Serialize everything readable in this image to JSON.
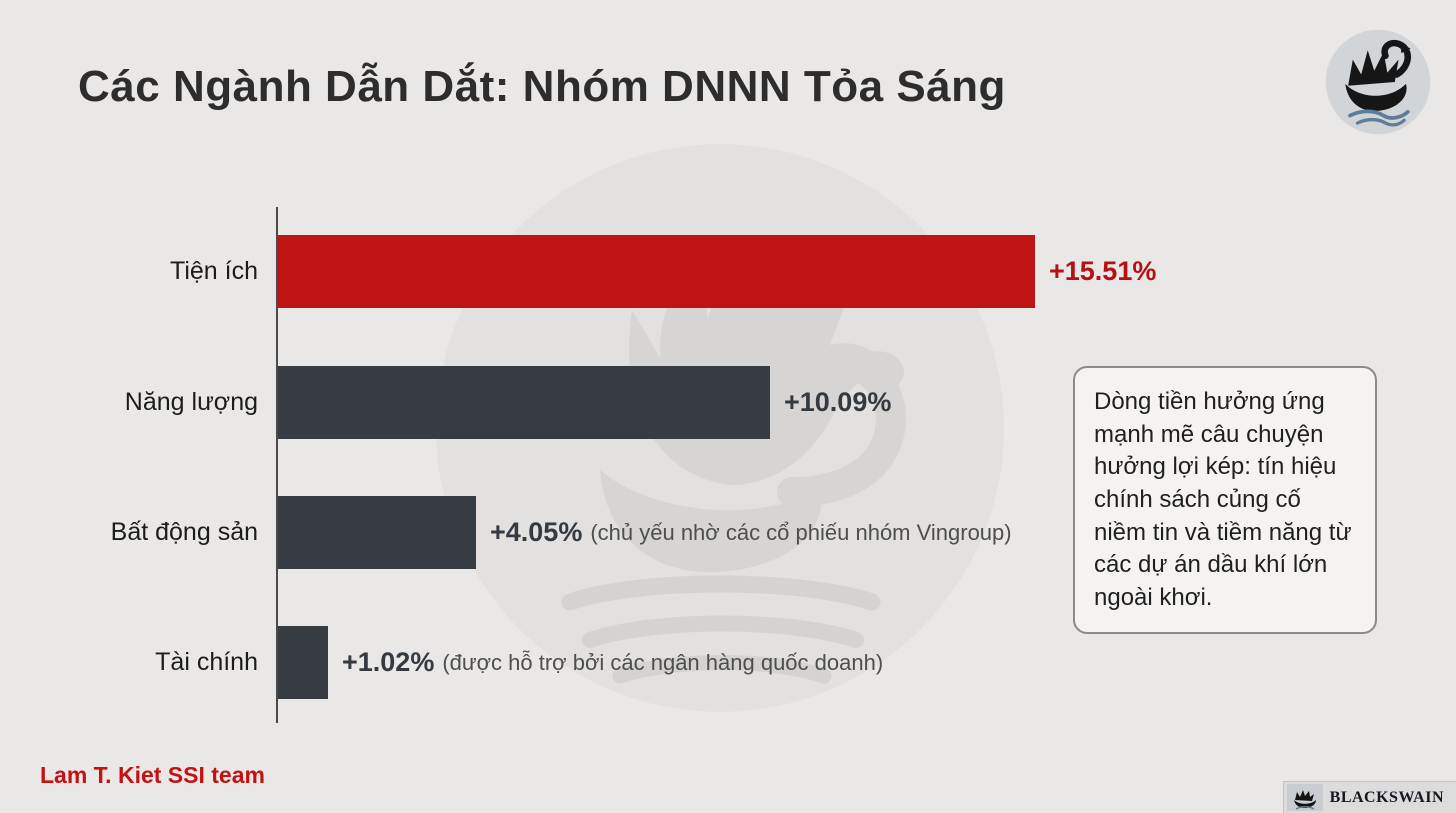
{
  "title": "Các Ngành Dẫn Dắt: Nhóm DNNN Tỏa Sáng",
  "colors": {
    "background": "#e9e8e6",
    "accent_red": "#bf1414",
    "bar_dark": "#373c43",
    "text_dark": "#2d2d2d",
    "credit_red": "#c41111"
  },
  "chart_data": {
    "type": "bar",
    "orientation": "horizontal",
    "title": "Các Ngành Dẫn Dắt: Nhóm DNNN Tỏa Sáng",
    "categories": [
      "Tiện ích",
      "Năng lượng",
      "Bất động sản",
      "Tài chính"
    ],
    "values": [
      15.51,
      10.09,
      4.05,
      1.02
    ],
    "value_labels": [
      "+15.51%",
      "+10.09%",
      "+4.05%",
      "+1.02%"
    ],
    "annotations": [
      "",
      "",
      "(chủ yếu nhờ các cổ phiếu nhóm Vingroup)",
      "(được hỗ trợ bởi các ngân hàng quốc doanh)"
    ],
    "bar_colors": [
      "#bf1414",
      "#373c43",
      "#373c43",
      "#373c43"
    ],
    "value_label_colors": [
      "#b51114",
      "#343a40",
      "#343a40",
      "#343a40"
    ],
    "xlabel": "",
    "ylabel": "",
    "xlim": [
      0,
      16
    ],
    "grid": false,
    "legend": false
  },
  "callout": {
    "text": "Dòng tiền hưởng ứng mạnh mẽ câu chuyện hưởng lợi kép: tín hiệu chính sách củng cố niềm tin và tiềm năng từ các dự án dầu khí lớn ngoài khơi."
  },
  "footer": {
    "credit": "Lam T. Kiet SSI team",
    "brand": "BLACKSWAIN"
  },
  "icons": {
    "top_right_logo": "black-swan-logo",
    "center": "swan-watermark",
    "bottom_right": "blackswain-brand-mark"
  }
}
